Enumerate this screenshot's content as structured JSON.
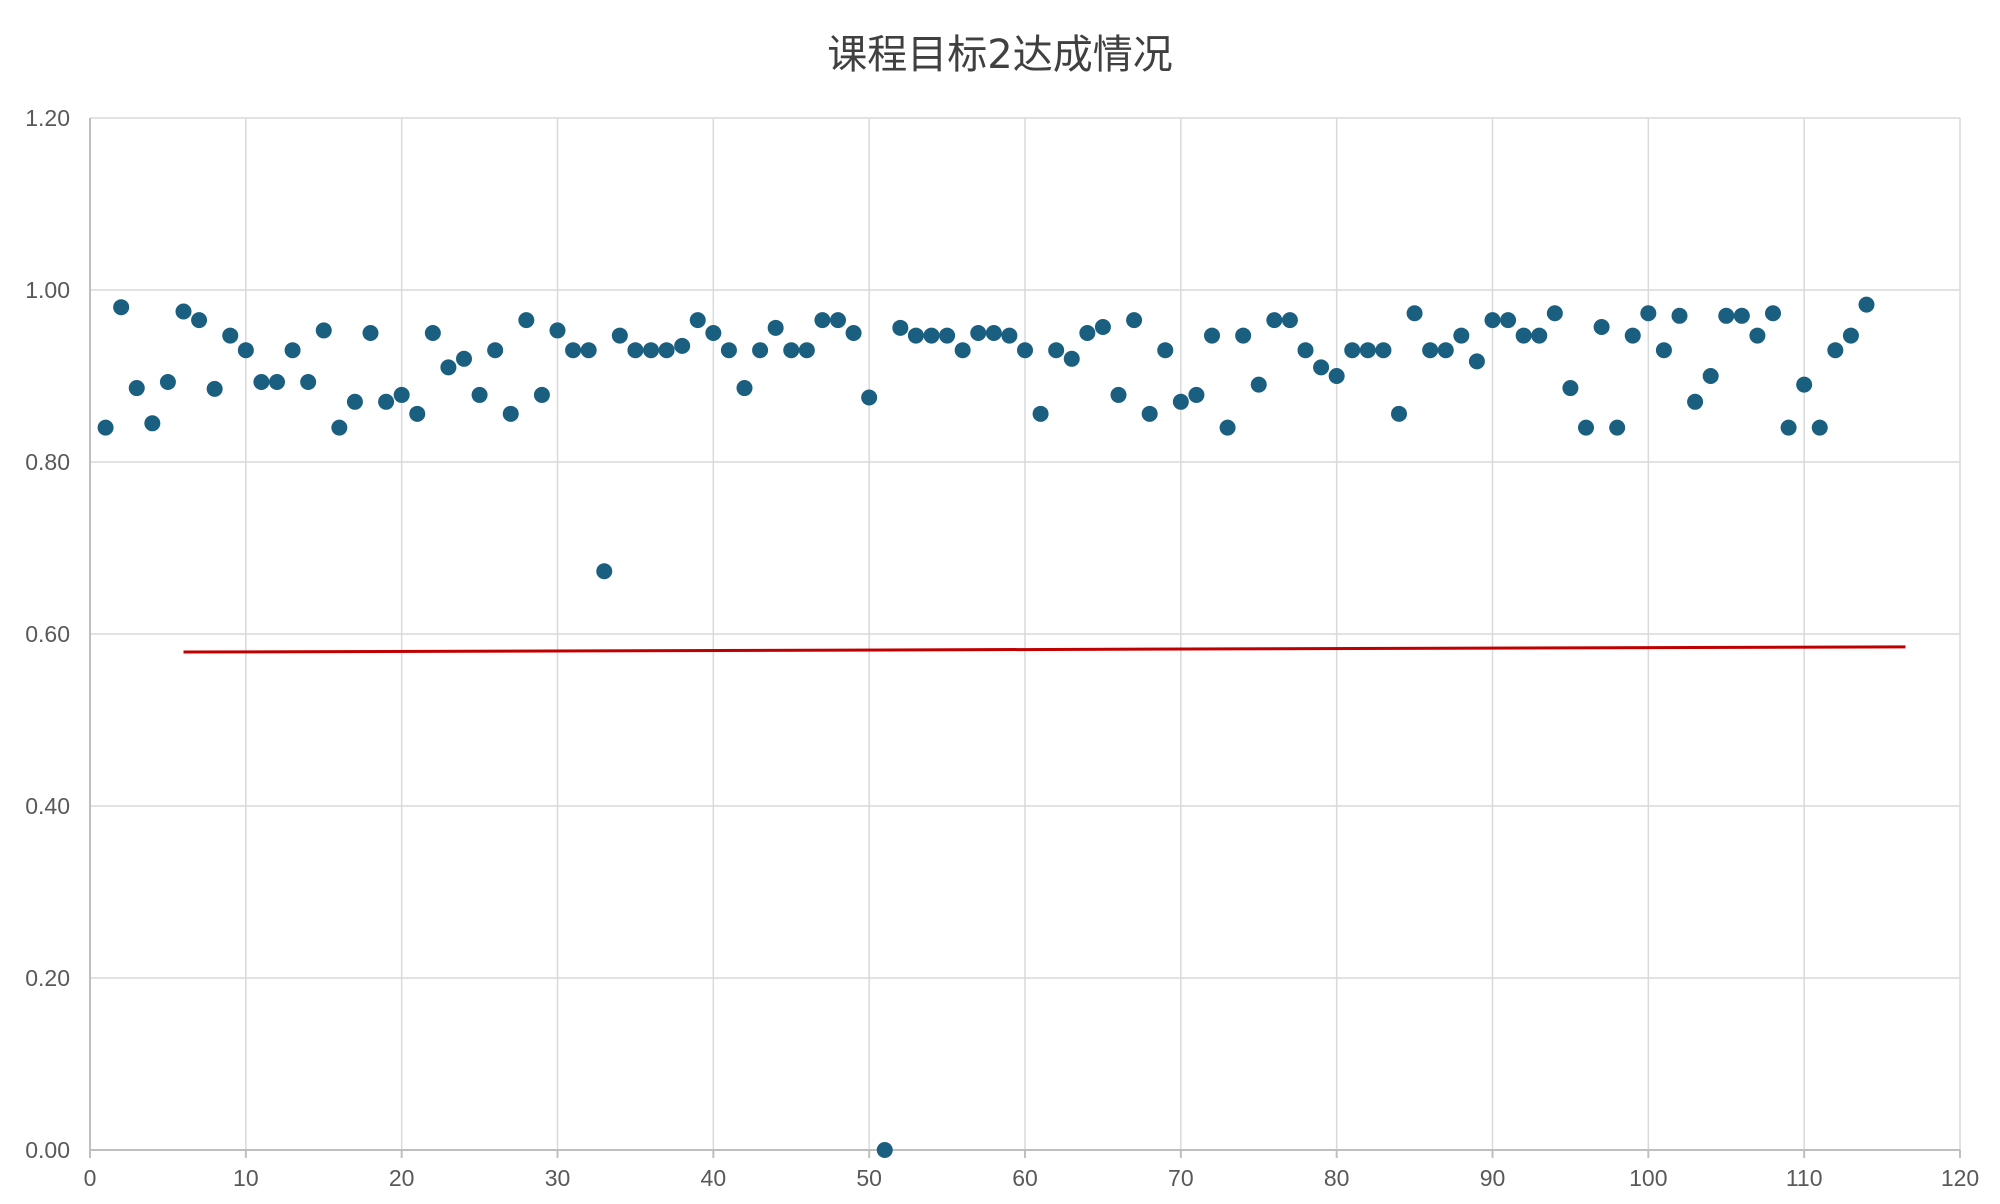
{
  "chart_data": {
    "type": "scatter",
    "title": "课程目标2达成情况",
    "xlabel": "",
    "ylabel": "",
    "xlim": [
      0,
      120
    ],
    "ylim": [
      0,
      1.2
    ],
    "x_ticks": [
      "0",
      "10",
      "20",
      "30",
      "40",
      "50",
      "60",
      "70",
      "80",
      "90",
      "100",
      "110",
      "120"
    ],
    "y_ticks": [
      "0.00",
      "0.20",
      "0.40",
      "0.60",
      "0.80",
      "1.00",
      "1.20"
    ],
    "grid": true,
    "legend": "none",
    "colors": {
      "points": "#1a5e80",
      "line": "#c00000",
      "grid": "#d9d9d9",
      "axis": "#bfbfbf"
    },
    "series": [
      {
        "type": "scatter",
        "x": [
          1,
          2,
          3,
          4,
          5,
          6,
          7,
          8,
          9,
          10,
          11,
          12,
          13,
          14,
          15,
          16,
          17,
          18,
          19,
          20,
          21,
          22,
          23,
          24,
          25,
          26,
          27,
          28,
          29,
          30,
          31,
          32,
          33,
          34,
          35,
          36,
          37,
          38,
          39,
          40,
          41,
          42,
          43,
          44,
          45,
          46,
          47,
          48,
          49,
          50,
          51,
          52,
          53,
          54,
          55,
          56,
          57,
          58,
          59,
          60,
          61,
          62,
          63,
          64,
          65,
          66,
          67,
          68,
          69,
          70,
          71,
          72,
          73,
          74,
          75,
          76,
          77,
          78,
          79,
          80,
          81,
          82,
          83,
          84,
          85,
          86,
          87,
          88,
          89,
          90,
          91,
          92,
          93,
          94,
          95,
          96,
          97,
          98,
          99,
          100,
          101,
          102,
          103,
          104,
          105,
          106,
          107,
          108,
          109,
          110,
          111,
          112,
          113,
          114
        ],
        "y": [
          0.84,
          0.98,
          0.886,
          0.845,
          0.893,
          0.975,
          0.965,
          0.885,
          0.947,
          0.93,
          0.893,
          0.893,
          0.93,
          0.893,
          0.953,
          0.84,
          0.87,
          0.95,
          0.87,
          0.878,
          0.856,
          0.95,
          0.91,
          0.92,
          0.878,
          0.93,
          0.856,
          0.965,
          0.878,
          0.953,
          0.93,
          0.93,
          0.673,
          0.947,
          0.93,
          0.93,
          0.93,
          0.935,
          0.965,
          0.95,
          0.93,
          0.886,
          0.93,
          0.956,
          0.93,
          0.93,
          0.965,
          0.965,
          0.95,
          0.875,
          0.0,
          0.956,
          0.947,
          0.947,
          0.947,
          0.93,
          0.95,
          0.95,
          0.947,
          0.93,
          0.856,
          0.93,
          0.92,
          0.95,
          0.957,
          0.878,
          0.965,
          0.856,
          0.93,
          0.87,
          0.878,
          0.947,
          0.84,
          0.947,
          0.89,
          0.965,
          0.965,
          0.93,
          0.91,
          0.9,
          0.93,
          0.93,
          0.93,
          0.856,
          0.973,
          0.93,
          0.93,
          0.947,
          0.917,
          0.965,
          0.965,
          0.947,
          0.947,
          0.973,
          0.886,
          0.84,
          0.957,
          0.84,
          0.947,
          0.973,
          0.93,
          0.97,
          0.87,
          0.9,
          0.97,
          0.97,
          0.947,
          0.973,
          0.84,
          0.89,
          0.84,
          0.93,
          0.947,
          0.983
        ]
      },
      {
        "type": "line",
        "x": [
          6,
          116.5
        ],
        "y": [
          0.579,
          0.585
        ]
      }
    ]
  }
}
